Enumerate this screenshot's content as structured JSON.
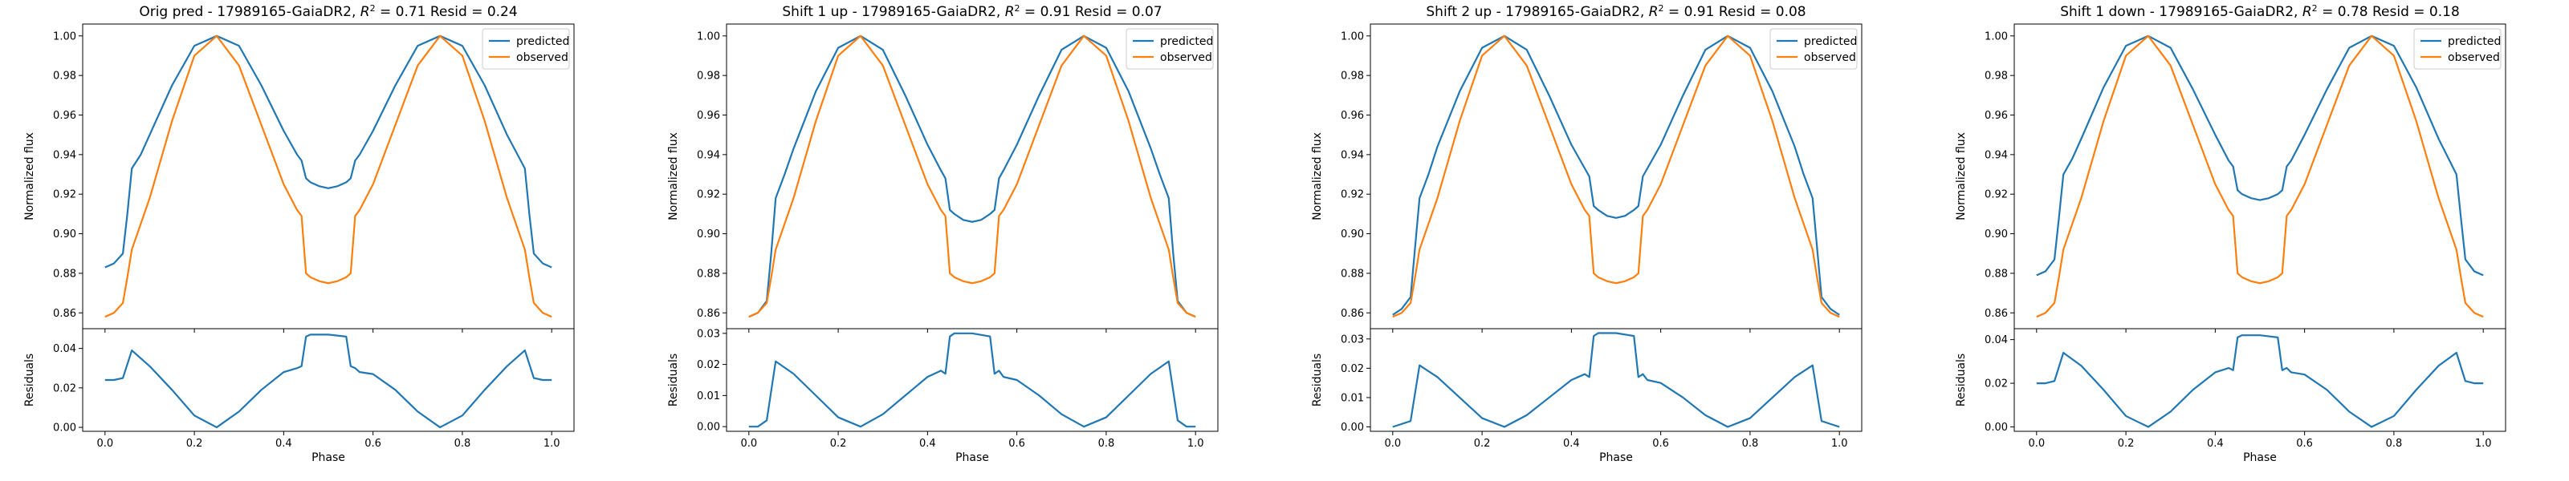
{
  "colors": {
    "predicted": "#1f77b4",
    "observed": "#ff7f0e"
  },
  "chart_data": [
    {
      "type": "line",
      "title": "Orig pred - 17989165-GaiaDR2, $R^2 = 0.71$ Resid = 0.24",
      "title_prefix": "Orig pred - 17989165-GaiaDR2, ",
      "title_r2": "= 0.71",
      "title_resid": " Resid = 0.24",
      "xlabel": "Phase",
      "ylabel_top": "Normalized flux",
      "ylabel_bottom": "Residuals",
      "x_ticks": [
        "0.0",
        "0.2",
        "0.4",
        "0.6",
        "0.8",
        "1.0"
      ],
      "y_top_ticks": [
        "0.86",
        "0.88",
        "0.90",
        "0.92",
        "0.94",
        "0.96",
        "0.98",
        "1.00"
      ],
      "y_top_lim": [
        0.852,
        1.006
      ],
      "y_bottom_ticks": [
        "0.00",
        "0.02",
        "0.04"
      ],
      "y_bottom_lim": [
        -0.002,
        0.05
      ],
      "legend": [
        "predicted",
        "observed"
      ],
      "legend_loc": "upper right",
      "series": [
        {
          "name": "predicted",
          "x": [
            0,
            0.02,
            0.04,
            0.05,
            0.06,
            0.08,
            0.1,
            0.15,
            0.2,
            0.25,
            0.3,
            0.35,
            0.4,
            0.43,
            0.44,
            0.45,
            0.46,
            0.48,
            0.5,
            0.52,
            0.54,
            0.55,
            0.56,
            0.57,
            0.6,
            0.65,
            0.7,
            0.75,
            0.8,
            0.85,
            0.9,
            0.94,
            0.95,
            0.96,
            0.98,
            1.0
          ],
          "y": [
            0.883,
            0.885,
            0.89,
            0.91,
            0.933,
            0.94,
            0.95,
            0.975,
            0.995,
            1.0,
            0.995,
            0.975,
            0.952,
            0.94,
            0.937,
            0.928,
            0.926,
            0.924,
            0.923,
            0.924,
            0.926,
            0.928,
            0.937,
            0.94,
            0.952,
            0.975,
            0.995,
            1.0,
            0.995,
            0.975,
            0.95,
            0.933,
            0.91,
            0.89,
            0.885,
            0.883
          ]
        },
        {
          "name": "observed",
          "x": [
            0,
            0.02,
            0.04,
            0.05,
            0.06,
            0.1,
            0.15,
            0.2,
            0.25,
            0.3,
            0.35,
            0.4,
            0.43,
            0.44,
            0.45,
            0.46,
            0.48,
            0.5,
            0.52,
            0.54,
            0.55,
            0.56,
            0.57,
            0.6,
            0.65,
            0.7,
            0.75,
            0.8,
            0.85,
            0.9,
            0.94,
            0.95,
            0.96,
            0.98,
            1.0
          ],
          "y": [
            0.858,
            0.86,
            0.865,
            0.878,
            0.892,
            0.918,
            0.957,
            0.99,
            1.0,
            0.985,
            0.955,
            0.925,
            0.912,
            0.909,
            0.88,
            0.878,
            0.876,
            0.875,
            0.876,
            0.878,
            0.88,
            0.909,
            0.912,
            0.925,
            0.955,
            0.985,
            1.0,
            0.99,
            0.957,
            0.918,
            0.892,
            0.878,
            0.865,
            0.86,
            0.858
          ]
        }
      ],
      "residuals": {
        "x": [
          0,
          0.02,
          0.04,
          0.06,
          0.1,
          0.15,
          0.2,
          0.25,
          0.3,
          0.35,
          0.4,
          0.43,
          0.44,
          0.45,
          0.46,
          0.5,
          0.54,
          0.55,
          0.56,
          0.57,
          0.6,
          0.65,
          0.7,
          0.75,
          0.8,
          0.85,
          0.9,
          0.94,
          0.96,
          0.98,
          1.0
        ],
        "y": [
          0.024,
          0.024,
          0.025,
          0.039,
          0.031,
          0.019,
          0.006,
          0.0,
          0.008,
          0.019,
          0.028,
          0.03,
          0.031,
          0.046,
          0.047,
          0.047,
          0.046,
          0.031,
          0.03,
          0.028,
          0.027,
          0.019,
          0.008,
          0.0,
          0.006,
          0.019,
          0.031,
          0.039,
          0.025,
          0.024,
          0.024
        ]
      }
    },
    {
      "type": "line",
      "title": "Shift 1 up - 17989165-GaiaDR2, $R^2 = 0.91$ Resid = 0.07",
      "title_prefix": "Shift 1 up - 17989165-GaiaDR2, ",
      "title_r2": "= 0.91",
      "title_resid": " Resid = 0.07",
      "xlabel": "Phase",
      "ylabel_top": "Normalized flux",
      "ylabel_bottom": "Residuals",
      "x_ticks": [
        "0.0",
        "0.2",
        "0.4",
        "0.6",
        "0.8",
        "1.0"
      ],
      "y_top_ticks": [
        "0.86",
        "0.88",
        "0.90",
        "0.92",
        "0.94",
        "0.96",
        "0.98",
        "1.00"
      ],
      "y_top_lim": [
        0.852,
        1.006
      ],
      "y_bottom_ticks": [
        "0.00",
        "0.01",
        "0.02",
        "0.03"
      ],
      "y_bottom_lim": [
        -0.0015,
        0.0315
      ],
      "legend": [
        "predicted",
        "observed"
      ],
      "legend_loc": "upper right",
      "series": [
        {
          "name": "predicted",
          "x": [
            0,
            0.02,
            0.04,
            0.05,
            0.06,
            0.08,
            0.1,
            0.15,
            0.2,
            0.25,
            0.3,
            0.35,
            0.4,
            0.43,
            0.44,
            0.45,
            0.46,
            0.48,
            0.5,
            0.52,
            0.54,
            0.55,
            0.56,
            0.57,
            0.6,
            0.65,
            0.7,
            0.75,
            0.8,
            0.85,
            0.9,
            0.92,
            0.94,
            0.95,
            0.96,
            0.98,
            1.0
          ],
          "y": [
            0.858,
            0.86,
            0.866,
            0.89,
            0.918,
            0.93,
            0.943,
            0.972,
            0.994,
            1.0,
            0.993,
            0.97,
            0.945,
            0.932,
            0.928,
            0.912,
            0.91,
            0.907,
            0.906,
            0.907,
            0.91,
            0.912,
            0.928,
            0.932,
            0.945,
            0.97,
            0.993,
            1.0,
            0.994,
            0.972,
            0.943,
            0.93,
            0.918,
            0.89,
            0.866,
            0.86,
            0.858
          ]
        },
        {
          "name": "observed",
          "x": [
            0,
            0.02,
            0.04,
            0.05,
            0.06,
            0.1,
            0.15,
            0.2,
            0.25,
            0.3,
            0.35,
            0.4,
            0.43,
            0.44,
            0.45,
            0.46,
            0.48,
            0.5,
            0.52,
            0.54,
            0.55,
            0.56,
            0.57,
            0.6,
            0.65,
            0.7,
            0.75,
            0.8,
            0.85,
            0.9,
            0.94,
            0.95,
            0.96,
            0.98,
            1.0
          ],
          "y": [
            0.858,
            0.86,
            0.865,
            0.878,
            0.892,
            0.918,
            0.957,
            0.99,
            1.0,
            0.985,
            0.955,
            0.925,
            0.912,
            0.909,
            0.88,
            0.878,
            0.876,
            0.875,
            0.876,
            0.878,
            0.88,
            0.909,
            0.912,
            0.925,
            0.955,
            0.985,
            1.0,
            0.99,
            0.957,
            0.918,
            0.892,
            0.878,
            0.865,
            0.86,
            0.858
          ]
        }
      ],
      "residuals": {
        "x": [
          0,
          0.02,
          0.04,
          0.06,
          0.1,
          0.15,
          0.2,
          0.25,
          0.3,
          0.35,
          0.4,
          0.43,
          0.44,
          0.45,
          0.46,
          0.5,
          0.54,
          0.55,
          0.56,
          0.57,
          0.6,
          0.65,
          0.7,
          0.75,
          0.8,
          0.85,
          0.9,
          0.94,
          0.96,
          0.98,
          1.0
        ],
        "y": [
          0.0,
          0.0,
          0.002,
          0.021,
          0.017,
          0.01,
          0.003,
          0.0,
          0.004,
          0.01,
          0.016,
          0.018,
          0.017,
          0.029,
          0.03,
          0.03,
          0.029,
          0.017,
          0.018,
          0.016,
          0.015,
          0.01,
          0.004,
          0.0,
          0.003,
          0.01,
          0.017,
          0.021,
          0.002,
          0.0,
          0.0
        ]
      }
    },
    {
      "type": "line",
      "title": "Shift 2 up - 17989165-GaiaDR2, $R^2 = 0.91$ Resid = 0.08",
      "title_prefix": "Shift 2 up - 17989165-GaiaDR2, ",
      "title_r2": "= 0.91",
      "title_resid": " Resid = 0.08",
      "xlabel": "Phase",
      "ylabel_top": "Normalized flux",
      "ylabel_bottom": "Residuals",
      "x_ticks": [
        "0.0",
        "0.2",
        "0.4",
        "0.6",
        "0.8",
        "1.0"
      ],
      "y_top_ticks": [
        "0.86",
        "0.88",
        "0.90",
        "0.92",
        "0.94",
        "0.96",
        "0.98",
        "1.00"
      ],
      "y_top_lim": [
        0.852,
        1.006
      ],
      "y_bottom_ticks": [
        "0.00",
        "0.01",
        "0.02",
        "0.03"
      ],
      "y_bottom_lim": [
        -0.0015,
        0.0335
      ],
      "legend": [
        "predicted",
        "observed"
      ],
      "legend_loc": "upper right",
      "series": [
        {
          "name": "predicted",
          "x": [
            0,
            0.02,
            0.04,
            0.05,
            0.06,
            0.08,
            0.1,
            0.15,
            0.2,
            0.25,
            0.3,
            0.35,
            0.4,
            0.43,
            0.44,
            0.45,
            0.46,
            0.48,
            0.5,
            0.52,
            0.54,
            0.55,
            0.56,
            0.57,
            0.6,
            0.65,
            0.7,
            0.75,
            0.8,
            0.85,
            0.9,
            0.92,
            0.94,
            0.95,
            0.96,
            0.98,
            1.0
          ],
          "y": [
            0.859,
            0.862,
            0.868,
            0.893,
            0.918,
            0.93,
            0.944,
            0.972,
            0.994,
            1.0,
            0.993,
            0.97,
            0.945,
            0.933,
            0.929,
            0.914,
            0.912,
            0.909,
            0.908,
            0.909,
            0.912,
            0.914,
            0.929,
            0.933,
            0.945,
            0.97,
            0.993,
            1.0,
            0.994,
            0.972,
            0.944,
            0.93,
            0.918,
            0.893,
            0.868,
            0.862,
            0.859
          ]
        },
        {
          "name": "observed",
          "x": [
            0,
            0.02,
            0.04,
            0.05,
            0.06,
            0.1,
            0.15,
            0.2,
            0.25,
            0.3,
            0.35,
            0.4,
            0.43,
            0.44,
            0.45,
            0.46,
            0.48,
            0.5,
            0.52,
            0.54,
            0.55,
            0.56,
            0.57,
            0.6,
            0.65,
            0.7,
            0.75,
            0.8,
            0.85,
            0.9,
            0.94,
            0.95,
            0.96,
            0.98,
            1.0
          ],
          "y": [
            0.858,
            0.86,
            0.865,
            0.878,
            0.892,
            0.918,
            0.957,
            0.99,
            1.0,
            0.985,
            0.955,
            0.925,
            0.912,
            0.909,
            0.88,
            0.878,
            0.876,
            0.875,
            0.876,
            0.878,
            0.88,
            0.909,
            0.912,
            0.925,
            0.955,
            0.985,
            1.0,
            0.99,
            0.957,
            0.918,
            0.892,
            0.878,
            0.865,
            0.86,
            0.858
          ]
        }
      ],
      "residuals": {
        "x": [
          0,
          0.02,
          0.04,
          0.06,
          0.1,
          0.15,
          0.2,
          0.25,
          0.3,
          0.35,
          0.4,
          0.43,
          0.44,
          0.45,
          0.46,
          0.5,
          0.54,
          0.55,
          0.56,
          0.57,
          0.6,
          0.65,
          0.7,
          0.75,
          0.8,
          0.85,
          0.9,
          0.94,
          0.96,
          0.98,
          1.0
        ],
        "y": [
          0.0,
          0.001,
          0.002,
          0.021,
          0.017,
          0.01,
          0.003,
          0.0,
          0.004,
          0.01,
          0.016,
          0.018,
          0.017,
          0.031,
          0.032,
          0.032,
          0.031,
          0.017,
          0.018,
          0.016,
          0.015,
          0.01,
          0.004,
          0.0,
          0.003,
          0.01,
          0.017,
          0.021,
          0.002,
          0.001,
          0.0
        ]
      }
    },
    {
      "type": "line",
      "title": "Shift 1 down - 17989165-GaiaDR2, $R^2 = 0.78$ Resid = 0.18",
      "title_prefix": "Shift 1 down - 17989165-GaiaDR2, ",
      "title_r2": "= 0.78",
      "title_resid": " Resid = 0.18",
      "xlabel": "Phase",
      "ylabel_top": "Normalized flux",
      "ylabel_bottom": "Residuals",
      "x_ticks": [
        "0.0",
        "0.2",
        "0.4",
        "0.6",
        "0.8",
        "1.0"
      ],
      "y_top_ticks": [
        "0.86",
        "0.88",
        "0.90",
        "0.92",
        "0.94",
        "0.96",
        "0.98",
        "1.00"
      ],
      "y_top_lim": [
        0.852,
        1.006
      ],
      "y_bottom_ticks": [
        "0.00",
        "0.02",
        "0.04"
      ],
      "y_bottom_lim": [
        -0.002,
        0.045
      ],
      "legend": [
        "predicted",
        "observed"
      ],
      "legend_loc": "upper right",
      "series": [
        {
          "name": "predicted",
          "x": [
            0,
            0.02,
            0.04,
            0.05,
            0.06,
            0.08,
            0.1,
            0.15,
            0.2,
            0.25,
            0.3,
            0.35,
            0.4,
            0.43,
            0.44,
            0.45,
            0.46,
            0.48,
            0.5,
            0.52,
            0.54,
            0.55,
            0.56,
            0.57,
            0.6,
            0.65,
            0.7,
            0.75,
            0.8,
            0.85,
            0.9,
            0.94,
            0.95,
            0.96,
            0.98,
            1.0
          ],
          "y": [
            0.879,
            0.881,
            0.887,
            0.908,
            0.93,
            0.938,
            0.948,
            0.974,
            0.995,
            1.0,
            0.994,
            0.973,
            0.95,
            0.937,
            0.934,
            0.922,
            0.92,
            0.918,
            0.917,
            0.918,
            0.92,
            0.922,
            0.934,
            0.937,
            0.95,
            0.973,
            0.994,
            1.0,
            0.995,
            0.974,
            0.948,
            0.93,
            0.908,
            0.887,
            0.881,
            0.879
          ]
        },
        {
          "name": "observed",
          "x": [
            0,
            0.02,
            0.04,
            0.05,
            0.06,
            0.1,
            0.15,
            0.2,
            0.25,
            0.3,
            0.35,
            0.4,
            0.43,
            0.44,
            0.45,
            0.46,
            0.48,
            0.5,
            0.52,
            0.54,
            0.55,
            0.56,
            0.57,
            0.6,
            0.65,
            0.7,
            0.75,
            0.8,
            0.85,
            0.9,
            0.94,
            0.95,
            0.96,
            0.98,
            1.0
          ],
          "y": [
            0.858,
            0.86,
            0.865,
            0.878,
            0.892,
            0.918,
            0.957,
            0.99,
            1.0,
            0.985,
            0.955,
            0.925,
            0.912,
            0.909,
            0.88,
            0.878,
            0.876,
            0.875,
            0.876,
            0.878,
            0.88,
            0.909,
            0.912,
            0.925,
            0.955,
            0.985,
            1.0,
            0.99,
            0.957,
            0.918,
            0.892,
            0.878,
            0.865,
            0.86,
            0.858
          ]
        }
      ],
      "residuals": {
        "x": [
          0,
          0.02,
          0.04,
          0.06,
          0.1,
          0.15,
          0.2,
          0.25,
          0.3,
          0.35,
          0.4,
          0.43,
          0.44,
          0.45,
          0.46,
          0.5,
          0.54,
          0.55,
          0.56,
          0.57,
          0.6,
          0.65,
          0.7,
          0.75,
          0.8,
          0.85,
          0.9,
          0.94,
          0.96,
          0.98,
          1.0
        ],
        "y": [
          0.02,
          0.02,
          0.021,
          0.034,
          0.028,
          0.017,
          0.005,
          0.0,
          0.007,
          0.017,
          0.025,
          0.027,
          0.026,
          0.041,
          0.042,
          0.042,
          0.041,
          0.026,
          0.027,
          0.025,
          0.024,
          0.017,
          0.007,
          0.0,
          0.005,
          0.017,
          0.028,
          0.034,
          0.021,
          0.02,
          0.02
        ]
      }
    }
  ]
}
